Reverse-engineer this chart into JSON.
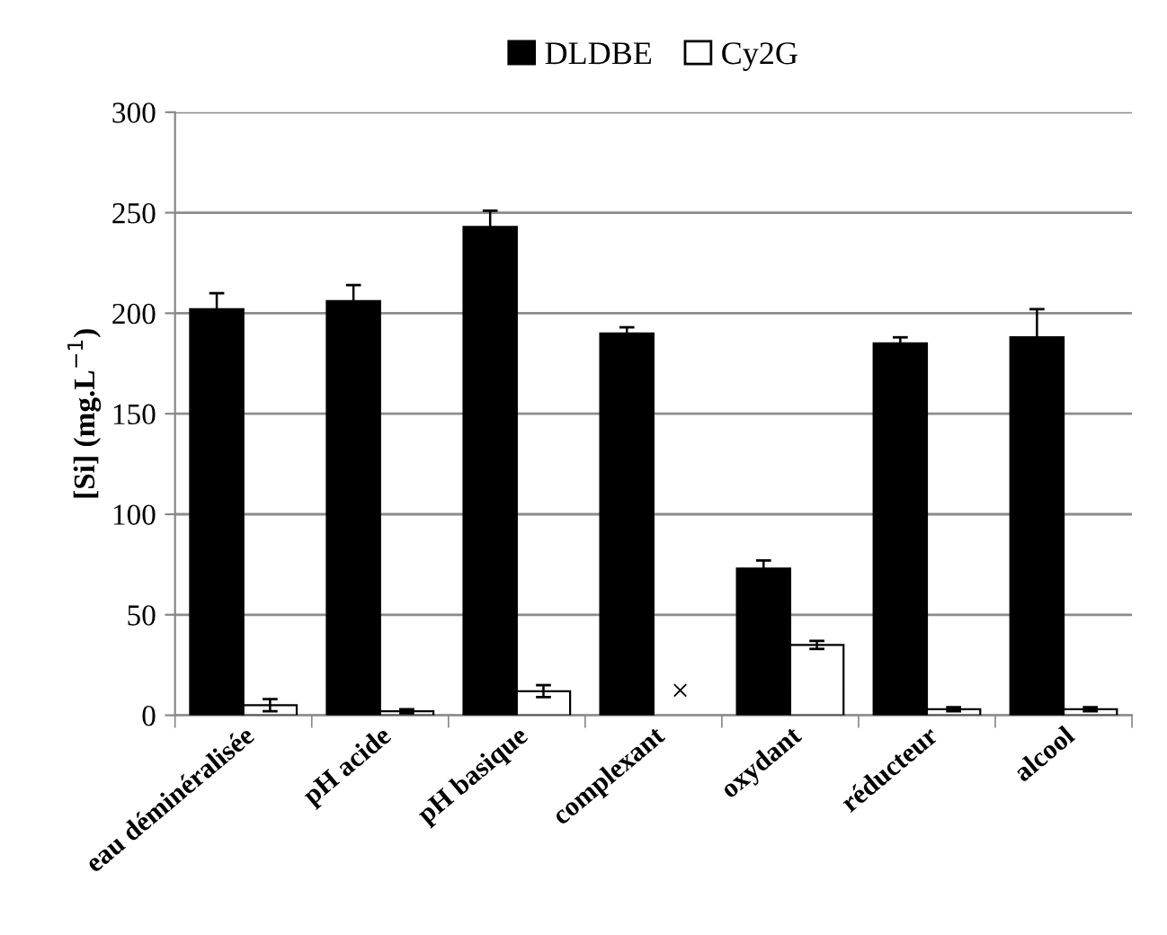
{
  "chart_data": {
    "type": "bar",
    "ylabel": "[Si] (mg.L$^{−1}$)",
    "categories": [
      "eau déminéralisée",
      "pH acide",
      "pH basique",
      "complexant",
      "oxydant",
      "réducteur",
      "alcool"
    ],
    "series": [
      {
        "name": "DLDBE",
        "color": "#000000",
        "values": [
          202,
          206,
          243,
          190,
          73,
          185,
          188
        ],
        "errors": [
          8,
          8,
          8,
          3,
          4,
          3,
          14
        ]
      },
      {
        "name": "Cy2G",
        "color": "#ffffff",
        "values": [
          5,
          2,
          12,
          null,
          35,
          3,
          3
        ],
        "errors": [
          3,
          1,
          3,
          null,
          2,
          1,
          1
        ]
      }
    ],
    "annotations": [
      "×"
    ],
    "ylim": [
      0,
      300
    ],
    "yticks": [
      0,
      50,
      100,
      150,
      200,
      250,
      300
    ],
    "grid": "y",
    "legend": "top"
  }
}
